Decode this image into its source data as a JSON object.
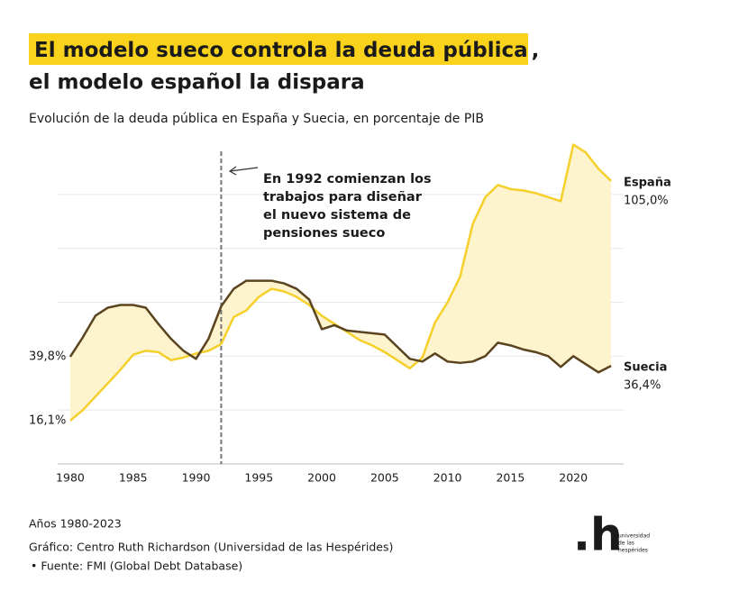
{
  "chart_data": {
    "type": "line",
    "title": [
      "El modelo sueco controla la deuda pública",
      ",",
      "el modelo español la dispara"
    ],
    "subtitle": "Evolución de la deuda pública en España y Suecia, en porcentaje de PIB",
    "x": [
      1980,
      1981,
      1982,
      1983,
      1984,
      1985,
      1986,
      1987,
      1988,
      1989,
      1990,
      1991,
      1992,
      1993,
      1994,
      1995,
      1996,
      1997,
      1998,
      1999,
      2000,
      2001,
      2002,
      2003,
      2004,
      2005,
      2006,
      2007,
      2008,
      2009,
      2010,
      2011,
      2012,
      2013,
      2014,
      2015,
      2016,
      2017,
      2018,
      2019,
      2020,
      2021,
      2022,
      2023
    ],
    "xlim": [
      1979,
      2024
    ],
    "xticks": [
      1980,
      1985,
      1990,
      1995,
      2000,
      2005,
      2010,
      2015,
      2020
    ],
    "ylim": [
      0,
      120
    ],
    "yticks": [
      0,
      20,
      40,
      60,
      80,
      100
    ],
    "grid": true,
    "series": [
      {
        "name": "España",
        "color": "#f5cf2a",
        "label_color": "#a88a1a",
        "values": [
          16.1,
          20,
          25,
          30,
          35,
          40.5,
          42,
          41.5,
          38.5,
          39.5,
          41,
          42,
          44.5,
          54.5,
          57,
          62,
          65,
          64,
          62,
          59,
          55,
          52,
          49,
          46,
          44,
          41.5,
          38.5,
          35.5,
          39.5,
          52.5,
          60,
          69.5,
          89,
          99,
          103.5,
          102,
          101.5,
          100.5,
          99,
          97.5,
          118.5,
          115.5,
          109.5,
          105.0
        ],
        "value_labels": [
          "16,1%",
          null,
          null,
          null,
          null,
          null,
          null,
          null,
          null,
          null,
          null,
          null,
          null,
          null,
          null,
          null,
          null,
          null,
          null,
          null,
          null,
          null,
          null,
          null,
          null,
          null,
          null,
          null,
          null,
          null,
          null,
          null,
          null,
          null,
          null,
          null,
          null,
          null,
          null,
          null,
          null,
          null,
          null,
          "105,0%"
        ]
      },
      {
        "name": "Suecia",
        "color": "#5a4420",
        "label_color": "#6b5128",
        "values": [
          39.8,
          47,
          55,
          58,
          59,
          59,
          58,
          52,
          46.5,
          42,
          39,
          46.5,
          58.5,
          65,
          68,
          68,
          68,
          67,
          65,
          61,
          50,
          51.5,
          49.5,
          49,
          48.5,
          48,
          43.5,
          39,
          38,
          41,
          38,
          37.5,
          38,
          40,
          45,
          44,
          42.5,
          41.5,
          40,
          36,
          40,
          37,
          34,
          36.4
        ],
        "value_labels": [
          "39,8%",
          null,
          null,
          null,
          null,
          null,
          null,
          null,
          null,
          null,
          null,
          null,
          null,
          null,
          null,
          null,
          null,
          null,
          null,
          null,
          null,
          null,
          null,
          null,
          null,
          null,
          null,
          null,
          null,
          null,
          null,
          null,
          null,
          null,
          null,
          null,
          null,
          null,
          null,
          null,
          null,
          null,
          null,
          "36,4%"
        ]
      }
    ],
    "area_between_color": "#fdf3cc",
    "annotation": {
      "x": 1992,
      "text_lines": [
        "En 1992 comienzan los",
        "trabajos para diseñar",
        "el nuevo sistema de",
        "pensiones sueco"
      ]
    },
    "x_note": "Años 1980-2023",
    "credit": "Gráfico: Centro Ruth Richardson (Universidad de las Hespérides)",
    "source": "• Fuente: FMI (Global Debt Database)",
    "logo": {
      "mark": ".h",
      "text_lines": [
        "universidad",
        "de las",
        "hespérides"
      ]
    }
  }
}
